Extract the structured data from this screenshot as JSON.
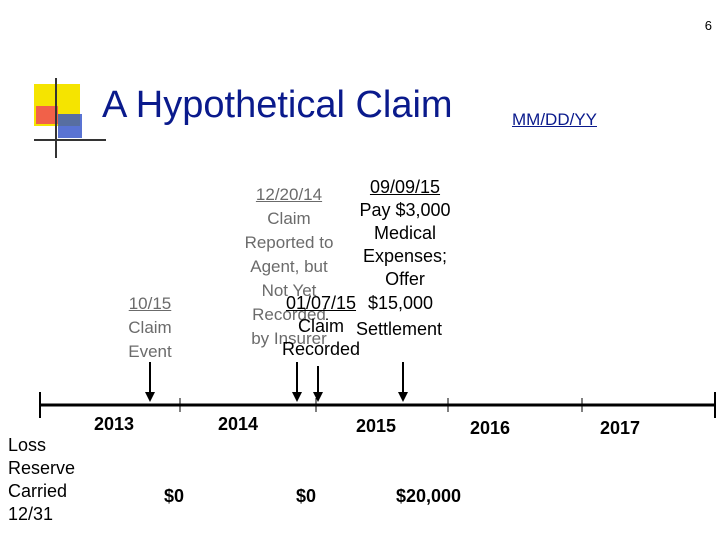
{
  "page_number": "6",
  "title": "A Hypothetical Claim",
  "date_format": "MM/DD/YY",
  "events": {
    "claim_event": [
      "10/15",
      "Claim",
      "Event"
    ],
    "reported": [
      "12/20/14",
      "Claim",
      "Reported to",
      "Agent, but",
      "Not Yet",
      "Recorded",
      "by Insurer"
    ],
    "recorded": [
      "01/07/15",
      "Claim",
      "Recorded"
    ],
    "payment": [
      "09/09/15",
      "Pay $3,000",
      "Medical",
      "Expenses;",
      "Offer",
      "$15,000",
      "Settlement"
    ]
  },
  "years": [
    "2013",
    "2014",
    "2015",
    "2016",
    "2017"
  ],
  "loss_reserve_label": [
    "Loss",
    "Reserve",
    "Carried",
    "12/31"
  ],
  "reserves": [
    "$0",
    "$0",
    "$20,000"
  ],
  "colors": {
    "title": "#0a1a8c",
    "muted_text": "#6b6b6b",
    "accent_yellow": "#f5e400",
    "accent_red": "#f04a56",
    "accent_blue": "#3050c8"
  }
}
